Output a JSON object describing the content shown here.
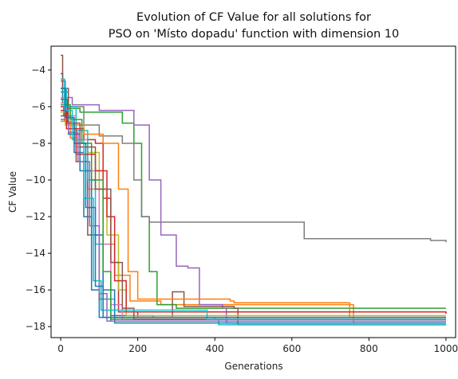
{
  "chart_data": {
    "type": "line",
    "title_lines": [
      "Evolution of CF Value for all solutions for",
      "PSO on 'Místo dopadu' function with dimension 10"
    ],
    "xlabel": "Generations",
    "ylabel": "CF Value",
    "xlim": [
      -25,
      1025
    ],
    "ylim": [
      -18.6,
      -2.7
    ],
    "xticks": [
      0,
      200,
      400,
      600,
      800,
      1000
    ],
    "yticks": [
      -18,
      -16,
      -14,
      -12,
      -10,
      -8,
      -6,
      -4
    ],
    "grid": false,
    "legend": "none",
    "series": [
      {
        "color": "#1f77b4",
        "points": [
          [
            0,
            -4.2
          ],
          [
            5,
            -5.8
          ],
          [
            18,
            -6.9
          ],
          [
            35,
            -8.5
          ],
          [
            60,
            -12.0
          ],
          [
            80,
            -16.0
          ],
          [
            100,
            -17.5
          ],
          [
            130,
            -17.7
          ],
          [
            1000,
            -17.7
          ]
        ]
      },
      {
        "color": "#ff7f0e",
        "points": [
          [
            0,
            -5.5
          ],
          [
            10,
            -6.8
          ],
          [
            25,
            -7.7
          ],
          [
            40,
            -8.2
          ],
          [
            70,
            -10.5
          ],
          [
            110,
            -13.5
          ],
          [
            140,
            -15.2
          ],
          [
            180,
            -16.6
          ],
          [
            260,
            -16.8
          ],
          [
            750,
            -16.8
          ],
          [
            760,
            -17.8
          ],
          [
            1000,
            -17.8
          ]
        ]
      },
      {
        "color": "#2ca02c",
        "points": [
          [
            0,
            -5.2
          ],
          [
            20,
            -6.1
          ],
          [
            50,
            -6.3
          ],
          [
            160,
            -6.9
          ],
          [
            190,
            -8.0
          ],
          [
            210,
            -12.0
          ],
          [
            230,
            -15.0
          ],
          [
            250,
            -16.8
          ],
          [
            300,
            -17.0
          ],
          [
            1000,
            -17.0
          ]
        ]
      },
      {
        "color": "#d62728",
        "points": [
          [
            0,
            -6.0
          ],
          [
            8,
            -6.5
          ],
          [
            30,
            -7.2
          ],
          [
            60,
            -7.8
          ],
          [
            90,
            -8.0
          ],
          [
            110,
            -11.0
          ],
          [
            130,
            -14.5
          ],
          [
            150,
            -17.2
          ],
          [
            200,
            -17.5
          ],
          [
            1000,
            -17.5
          ]
        ]
      },
      {
        "color": "#9467bd",
        "points": [
          [
            0,
            -4.6
          ],
          [
            12,
            -5.5
          ],
          [
            30,
            -5.9
          ],
          [
            100,
            -6.2
          ],
          [
            190,
            -7.0
          ],
          [
            230,
            -10.0
          ],
          [
            260,
            -13.0
          ],
          [
            300,
            -14.7
          ],
          [
            330,
            -14.8
          ],
          [
            360,
            -16.8
          ],
          [
            420,
            -17.0
          ],
          [
            430,
            -17.8
          ],
          [
            1000,
            -17.8
          ]
        ]
      },
      {
        "color": "#8c564b",
        "points": [
          [
            0,
            -3.2
          ],
          [
            5,
            -5.0
          ],
          [
            20,
            -7.0
          ],
          [
            40,
            -9.0
          ],
          [
            70,
            -13.0
          ],
          [
            100,
            -16.5
          ],
          [
            130,
            -17.4
          ],
          [
            240,
            -17.5
          ],
          [
            290,
            -16.1
          ],
          [
            320,
            -16.9
          ],
          [
            450,
            -17.0
          ],
          [
            460,
            -17.9
          ],
          [
            1000,
            -17.9
          ]
        ]
      },
      {
        "color": "#e377c2",
        "points": [
          [
            0,
            -5.8
          ],
          [
            15,
            -6.5
          ],
          [
            40,
            -7.8
          ],
          [
            70,
            -9.5
          ],
          [
            100,
            -13.5
          ],
          [
            130,
            -16.8
          ],
          [
            160,
            -17.6
          ],
          [
            1000,
            -17.6
          ]
        ]
      },
      {
        "color": "#7f7f7f",
        "points": [
          [
            0,
            -5.0
          ],
          [
            10,
            -6.0
          ],
          [
            60,
            -7.0
          ],
          [
            100,
            -7.6
          ],
          [
            160,
            -8.0
          ],
          [
            190,
            -10.0
          ],
          [
            210,
            -12.0
          ],
          [
            230,
            -12.3
          ],
          [
            630,
            -12.3
          ],
          [
            632,
            -13.2
          ],
          [
            940,
            -13.2
          ],
          [
            960,
            -13.3
          ],
          [
            1000,
            -13.4
          ]
        ]
      },
      {
        "color": "#bcbd22",
        "points": [
          [
            0,
            -6.3
          ],
          [
            12,
            -7.0
          ],
          [
            35,
            -8.0
          ],
          [
            70,
            -8.5
          ],
          [
            100,
            -10.5
          ],
          [
            120,
            -13.0
          ],
          [
            150,
            -16.0
          ],
          [
            170,
            -17.4
          ],
          [
            1000,
            -17.4
          ]
        ]
      },
      {
        "color": "#17becf",
        "points": [
          [
            0,
            -5.0
          ],
          [
            15,
            -6.0
          ],
          [
            40,
            -7.3
          ],
          [
            70,
            -10.0
          ],
          [
            90,
            -13.5
          ],
          [
            110,
            -16.5
          ],
          [
            140,
            -17.5
          ],
          [
            400,
            -17.6
          ],
          [
            410,
            -17.9
          ],
          [
            1000,
            -17.9
          ]
        ]
      },
      {
        "color": "#1f77b4",
        "points": [
          [
            0,
            -6.5
          ],
          [
            20,
            -7.5
          ],
          [
            50,
            -9.5
          ],
          [
            80,
            -13.0
          ],
          [
            110,
            -16.0
          ],
          [
            140,
            -17.8
          ],
          [
            1000,
            -17.8
          ]
        ]
      },
      {
        "color": "#ff7f0e",
        "points": [
          [
            0,
            -6.8
          ],
          [
            30,
            -7.0
          ],
          [
            60,
            -7.5
          ],
          [
            110,
            -8.0
          ],
          [
            150,
            -10.5
          ],
          [
            175,
            -15.0
          ],
          [
            200,
            -16.5
          ],
          [
            440,
            -16.6
          ],
          [
            450,
            -16.7
          ],
          [
            740,
            -16.7
          ],
          [
            750,
            -17.5
          ],
          [
            1000,
            -17.5
          ]
        ]
      },
      {
        "color": "#2ca02c",
        "points": [
          [
            0,
            -5.9
          ],
          [
            25,
            -6.7
          ],
          [
            55,
            -8.0
          ],
          [
            80,
            -10.0
          ],
          [
            110,
            -15.0
          ],
          [
            130,
            -17.6
          ],
          [
            1000,
            -17.6
          ]
        ]
      },
      {
        "color": "#d62728",
        "points": [
          [
            0,
            -6.2
          ],
          [
            15,
            -7.2
          ],
          [
            40,
            -8.6
          ],
          [
            90,
            -9.5
          ],
          [
            120,
            -12.0
          ],
          [
            140,
            -15.5
          ],
          [
            170,
            -17.2
          ],
          [
            1000,
            -17.3
          ]
        ]
      },
      {
        "color": "#9467bd",
        "points": [
          [
            0,
            -6.7
          ],
          [
            20,
            -7.4
          ],
          [
            45,
            -9.0
          ],
          [
            75,
            -12.5
          ],
          [
            100,
            -16.2
          ],
          [
            120,
            -17.7
          ],
          [
            1000,
            -17.7
          ]
        ]
      },
      {
        "color": "#8c564b",
        "points": [
          [
            0,
            -5.6
          ],
          [
            18,
            -6.9
          ],
          [
            50,
            -8.2
          ],
          [
            90,
            -10.5
          ],
          [
            130,
            -14.5
          ],
          [
            160,
            -17.0
          ],
          [
            190,
            -17.6
          ],
          [
            1000,
            -17.6
          ]
        ]
      },
      {
        "color": "#17becf",
        "points": [
          [
            0,
            -4.5
          ],
          [
            10,
            -6.2
          ],
          [
            30,
            -7.8
          ],
          [
            60,
            -11.0
          ],
          [
            85,
            -15.5
          ],
          [
            105,
            -17.1
          ],
          [
            360,
            -17.1
          ],
          [
            380,
            -17.6
          ],
          [
            1000,
            -17.6
          ]
        ]
      },
      {
        "color": "#1f77b4",
        "points": [
          [
            0,
            -5.0
          ],
          [
            12,
            -6.6
          ],
          [
            35,
            -8.0
          ],
          [
            65,
            -11.5
          ],
          [
            90,
            -15.8
          ],
          [
            110,
            -17.5
          ],
          [
            1000,
            -17.5
          ]
        ]
      }
    ]
  }
}
